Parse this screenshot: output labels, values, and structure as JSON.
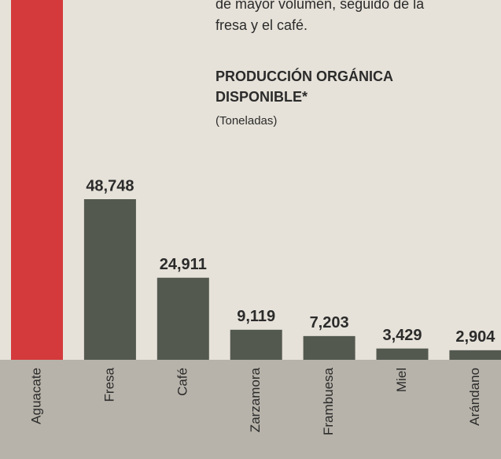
{
  "chart_data": {
    "type": "bar",
    "intro": [
      "de mayor volumen, seguido de la",
      "fresa y el café."
    ],
    "title": [
      "PRODUCCIÓN ORGÁNICA",
      "DISPONIBLE*"
    ],
    "subtitle": "(Toneladas)",
    "categories": [
      "Aguacate",
      "Fresa",
      "Café",
      "Zarzamora",
      "Frambuesa",
      "Miel",
      "Arándano"
    ],
    "values": [
      120000,
      48748,
      24911,
      9119,
      7203,
      3429,
      2904
    ],
    "value_labels": [
      null,
      "48,748",
      "24,911",
      "9,119",
      "7,203",
      "3,429",
      "2,904"
    ],
    "colors": [
      "#d43a3c",
      "#545950",
      "#545950",
      "#545950",
      "#545950",
      "#545950",
      "#545950"
    ]
  }
}
